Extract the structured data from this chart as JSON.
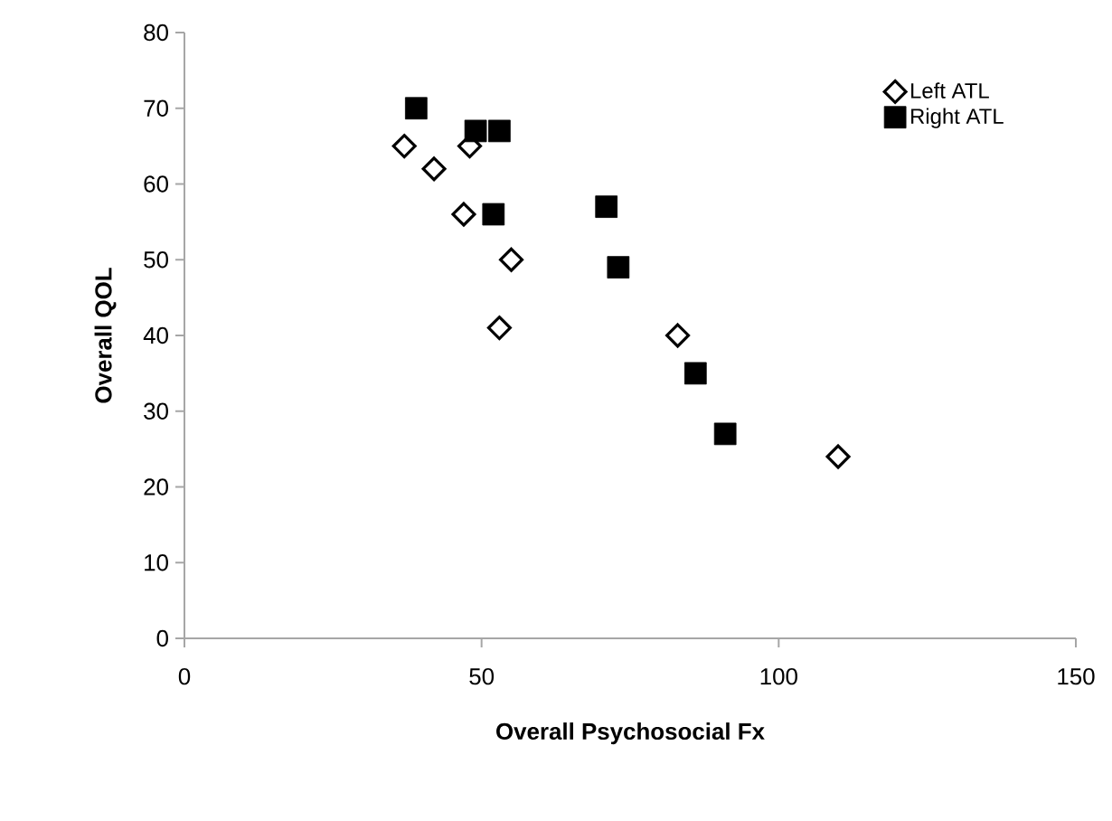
{
  "chart_data": {
    "type": "scatter",
    "xlabel": "Overall Psychosocial Fx",
    "ylabel": "Overall QOL",
    "xlim": [
      0,
      150
    ],
    "xticks": [
      0,
      50,
      100,
      150
    ],
    "ylim": [
      0,
      80
    ],
    "yticks": [
      0,
      10,
      20,
      30,
      40,
      50,
      60,
      70,
      80
    ],
    "grid": false,
    "legend": "top right",
    "series": [
      {
        "name": "Left ATL",
        "color": "#000000",
        "marker": "diamond",
        "x": [
          37,
          42,
          48,
          47,
          55,
          53,
          83,
          110
        ],
        "values": [
          65,
          62,
          65,
          56,
          50,
          41,
          40,
          24
        ]
      },
      {
        "name": "Right ATL",
        "color": "#000000",
        "marker": "square",
        "x": [
          39,
          49,
          53,
          52,
          71,
          73,
          86,
          91
        ],
        "values": [
          70,
          67,
          67,
          56,
          57,
          49,
          35,
          27
        ]
      }
    ]
  }
}
